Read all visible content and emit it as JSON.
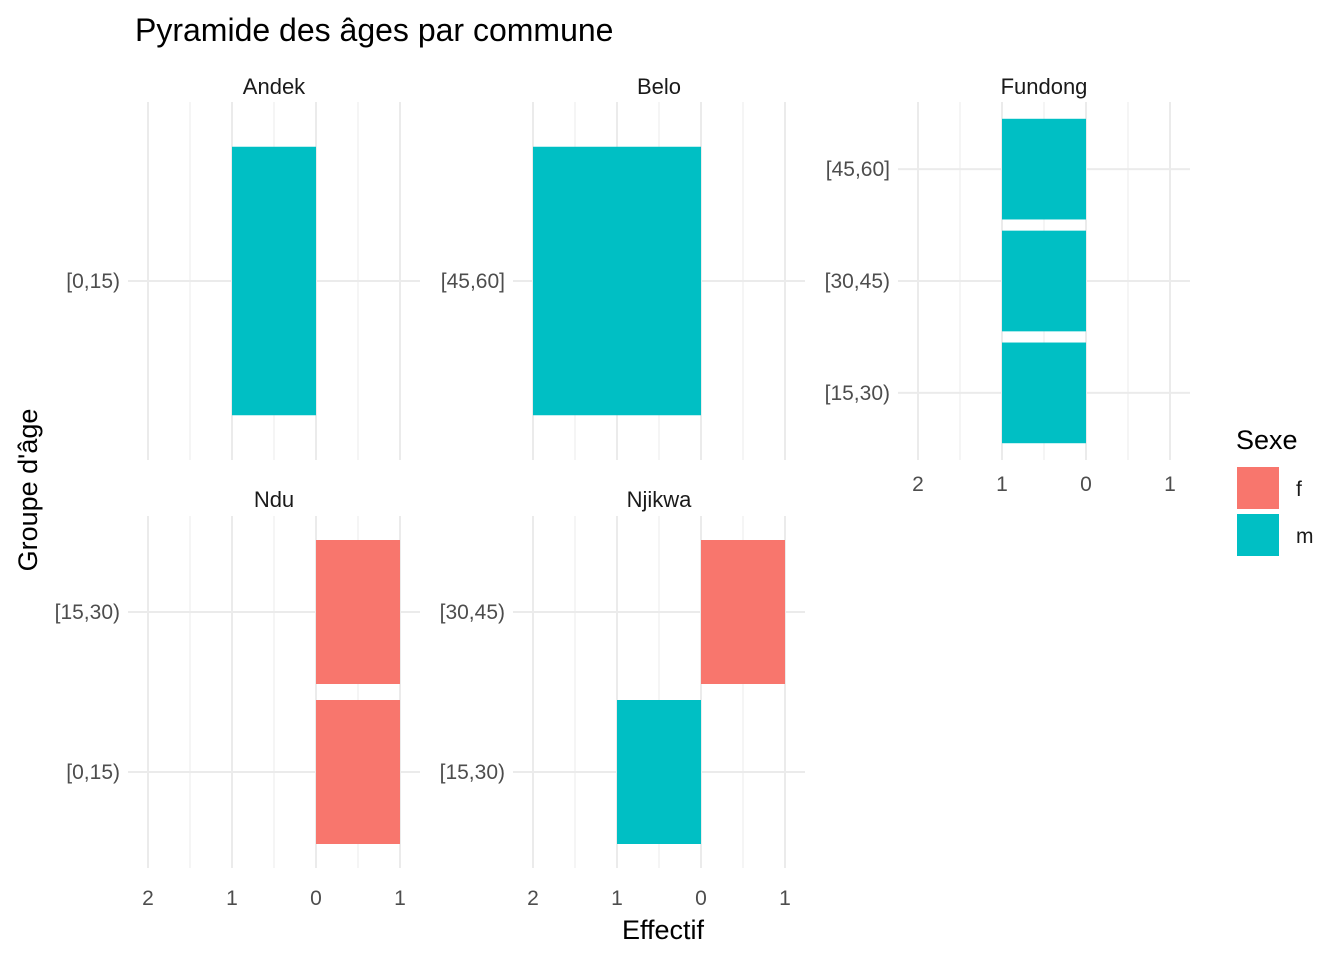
{
  "chart_data": {
    "type": "bar",
    "orientation": "horizontal",
    "title": "Pyramide des âges par commune",
    "xlabel": "Effectif",
    "ylabel": "Groupe d'âge",
    "xlim": [
      -2,
      1
    ],
    "x_tick_labels": [
      "2",
      "1",
      "0",
      "1"
    ],
    "grid": true,
    "legend": {
      "title": "Sexe",
      "placement": "right",
      "entries": [
        {
          "label": "f",
          "color": "#F8766D"
        },
        {
          "label": "m",
          "color": "#00BFC4"
        }
      ]
    },
    "panels": [
      {
        "name": "Andek",
        "categories": [
          "[0,15)"
        ],
        "bars": [
          {
            "category": "[0,15)",
            "sexe": "m",
            "value": -1
          }
        ]
      },
      {
        "name": "Belo",
        "categories": [
          "[45,60]"
        ],
        "bars": [
          {
            "category": "[45,60]",
            "sexe": "m",
            "value": -2
          }
        ]
      },
      {
        "name": "Fundong",
        "categories": [
          "[15,30)",
          "[30,45)",
          "[45,60]"
        ],
        "bars": [
          {
            "category": "[45,60]",
            "sexe": "m",
            "value": -1
          },
          {
            "category": "[30,45)",
            "sexe": "m",
            "value": -1
          },
          {
            "category": "[15,30)",
            "sexe": "m",
            "value": -1
          }
        ]
      },
      {
        "name": "Ndu",
        "categories": [
          "[0,15)",
          "[15,30)"
        ],
        "bars": [
          {
            "category": "[15,30)",
            "sexe": "f",
            "value": 1
          },
          {
            "category": "[0,15)",
            "sexe": "f",
            "value": 1
          }
        ]
      },
      {
        "name": "Njikwa",
        "categories": [
          "[15,30)",
          "[30,45)"
        ],
        "bars": [
          {
            "category": "[30,45)",
            "sexe": "f",
            "value": 1
          },
          {
            "category": "[15,30)",
            "sexe": "m",
            "value": -1
          }
        ]
      }
    ]
  }
}
